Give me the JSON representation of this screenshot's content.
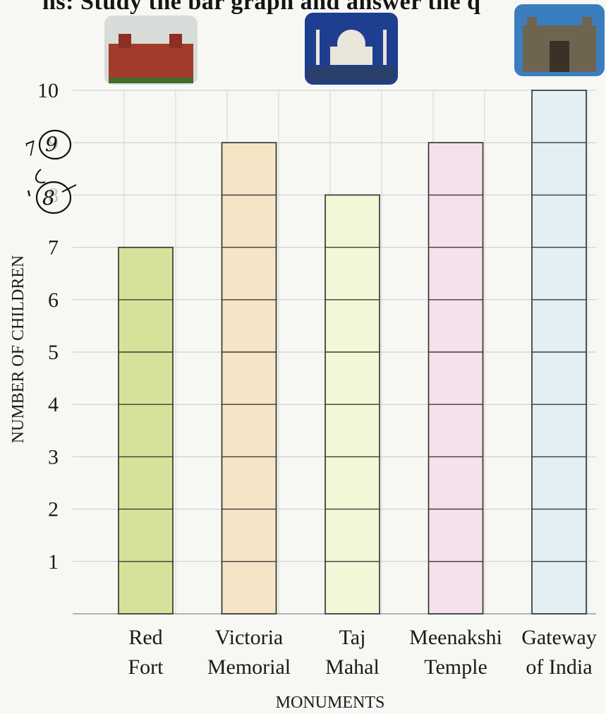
{
  "header": {
    "text": "ns: Study the bar graph and answer the q"
  },
  "chart_data": {
    "type": "bar",
    "xlabel": "MONUMENTS",
    "ylabel": "NUMBER OF CHILDREN",
    "ylim": [
      0,
      10
    ],
    "yticks": [
      "1",
      "2",
      "3",
      "4",
      "5",
      "6",
      "7",
      "8",
      "9",
      "10"
    ],
    "grid": true,
    "categories": [
      {
        "line1": "Red",
        "line2": "Fort",
        "value": 7,
        "color": "#d6e29a",
        "icon": "red-fort-photo"
      },
      {
        "line1": "Victoria",
        "line2": "Memorial",
        "value": 9,
        "color": "#f6e4c6",
        "icon": "victoria-memorial"
      },
      {
        "line1": "Taj",
        "line2": "Mahal",
        "value": 8,
        "color": "#f3f7d8",
        "icon": "taj-mahal-photo"
      },
      {
        "line1": "Meenakshi",
        "line2": "Temple",
        "value": 9,
        "color": "#f4e1ec",
        "icon": "meenakshi-temple"
      },
      {
        "line1": "Gateway",
        "line2": "of India",
        "value": 10,
        "color": "#e4eef5",
        "icon": "gateway-of-india-photo"
      }
    ],
    "annotations": [
      "9",
      "8",
      "7"
    ]
  }
}
